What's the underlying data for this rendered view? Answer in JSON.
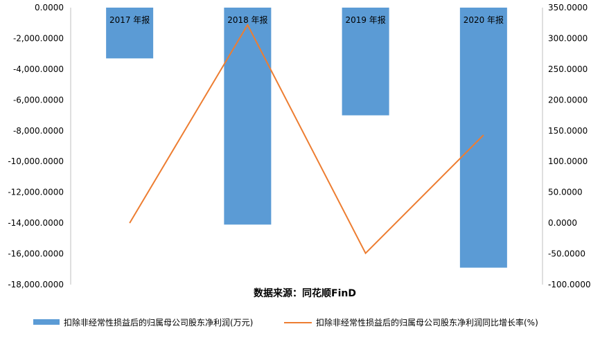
{
  "chart_data": {
    "type": "bar",
    "categories": [
      "2017 年报",
      "2018 年报",
      "2019 年报",
      "2020 年报"
    ],
    "series": [
      {
        "name": "扣除非经常性损益后的归属母公司股东净利润(万元)",
        "kind": "bar",
        "axis": "left",
        "color": "#5B9BD5",
        "values": [
          -3300,
          -14100,
          -7000,
          -16900
        ]
      },
      {
        "name": "扣除非经常性损益后的归属母公司股东净利润同比增长率(%)",
        "kind": "line",
        "axis": "right",
        "color": "#ED7D31",
        "values": [
          0,
          322,
          -49,
          143
        ]
      }
    ],
    "left_axis": {
      "min": -18000,
      "max": 0,
      "ticks": [
        "0.0000",
        "-2,000.0000",
        "-4,000.0000",
        "-6,000.0000",
        "-8,000.0000",
        "-10,000.0000",
        "-12,000.0000",
        "-14,000.0000",
        "-16,000.0000",
        "-18,000.0000"
      ]
    },
    "right_axis": {
      "min": -100,
      "max": 350,
      "ticks": [
        "350.0000",
        "300.0000",
        "250.0000",
        "200.0000",
        "150.0000",
        "100.0000",
        "50.0000",
        "0.0000",
        "-50.0000",
        "-100.0000"
      ]
    },
    "source_note": "数据来源：同花顺FinD",
    "grid": false,
    "legend_position": "bottom"
  }
}
